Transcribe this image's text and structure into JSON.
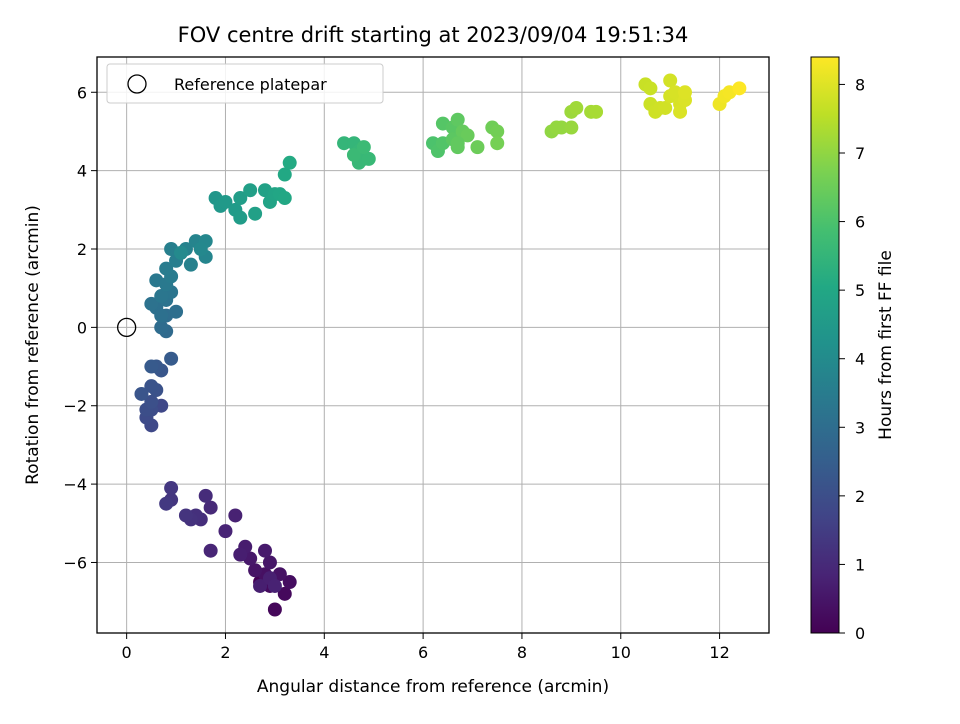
{
  "chart_data": {
    "type": "scatter",
    "title": "FOV centre drift starting at 2023/09/04 19:51:34",
    "xlabel": "Angular distance from reference (arcmin)",
    "ylabel": "Rotation from reference (arcmin)",
    "xlim": [
      -0.6,
      13.0
    ],
    "ylim": [
      -7.8,
      6.9
    ],
    "xticks": [
      0,
      2,
      4,
      6,
      8,
      10,
      12
    ],
    "yticks": [
      -6,
      -4,
      -2,
      0,
      2,
      4,
      6
    ],
    "grid": true,
    "legend": {
      "placement": "top-left",
      "entries": [
        {
          "label": "Reference platepar",
          "marker": "open-circle",
          "x": 0,
          "y": 0
        }
      ]
    },
    "colorbar": {
      "label": "Hours from first FF file",
      "colormap": "viridis",
      "range": [
        0,
        8.4
      ],
      "ticks": [
        0,
        1,
        2,
        3,
        4,
        5,
        6,
        7,
        8
      ]
    },
    "points": [
      {
        "x": 2.7,
        "y": -6.5,
        "h": 0.0
      },
      {
        "x": 3.0,
        "y": -7.2,
        "h": 0.15
      },
      {
        "x": 3.2,
        "y": -6.8,
        "h": 0.2
      },
      {
        "x": 2.9,
        "y": -6.6,
        "h": 0.25
      },
      {
        "x": 3.3,
        "y": -6.5,
        "h": 0.3
      },
      {
        "x": 2.8,
        "y": -6.3,
        "h": 0.35
      },
      {
        "x": 3.1,
        "y": -6.3,
        "h": 0.4
      },
      {
        "x": 2.6,
        "y": -6.2,
        "h": 0.45
      },
      {
        "x": 2.9,
        "y": -6.0,
        "h": 0.5
      },
      {
        "x": 2.5,
        "y": -5.9,
        "h": 0.55
      },
      {
        "x": 2.8,
        "y": -5.7,
        "h": 0.6
      },
      {
        "x": 2.4,
        "y": -5.6,
        "h": 0.65
      },
      {
        "x": 2.3,
        "y": -5.8,
        "h": 0.7
      },
      {
        "x": 2.7,
        "y": -6.6,
        "h": 0.72
      },
      {
        "x": 2.9,
        "y": -6.4,
        "h": 0.75
      },
      {
        "x": 3.0,
        "y": -6.6,
        "h": 0.78
      },
      {
        "x": 2.2,
        "y": -4.8,
        "h": 0.8
      },
      {
        "x": 2.0,
        "y": -5.2,
        "h": 0.85
      },
      {
        "x": 1.7,
        "y": -5.7,
        "h": 0.9
      },
      {
        "x": 1.7,
        "y": -4.6,
        "h": 1.0
      },
      {
        "x": 1.6,
        "y": -4.3,
        "h": 1.05
      },
      {
        "x": 1.5,
        "y": -4.9,
        "h": 1.1
      },
      {
        "x": 1.4,
        "y": -4.8,
        "h": 1.15
      },
      {
        "x": 1.3,
        "y": -4.9,
        "h": 1.2
      },
      {
        "x": 1.2,
        "y": -4.8,
        "h": 1.25
      },
      {
        "x": 0.9,
        "y": -4.4,
        "h": 1.3
      },
      {
        "x": 0.9,
        "y": -4.1,
        "h": 1.35
      },
      {
        "x": 0.8,
        "y": -4.5,
        "h": 1.4
      },
      {
        "x": 0.7,
        "y": -2.0,
        "h": 1.8
      },
      {
        "x": 0.5,
        "y": -2.5,
        "h": 1.85
      },
      {
        "x": 0.4,
        "y": -2.3,
        "h": 1.9
      },
      {
        "x": 0.5,
        "y": -2.1,
        "h": 1.95
      },
      {
        "x": 0.4,
        "y": -2.1,
        "h": 2.0
      },
      {
        "x": 0.5,
        "y": -1.9,
        "h": 2.05
      },
      {
        "x": 0.6,
        "y": -1.6,
        "h": 2.1
      },
      {
        "x": 0.5,
        "y": -1.5,
        "h": 2.15
      },
      {
        "x": 0.3,
        "y": -1.7,
        "h": 2.2
      },
      {
        "x": 0.7,
        "y": -1.1,
        "h": 2.25
      },
      {
        "x": 0.6,
        "y": -1.0,
        "h": 2.3
      },
      {
        "x": 0.5,
        "y": -1.0,
        "h": 2.35
      },
      {
        "x": 0.9,
        "y": -0.8,
        "h": 2.4
      },
      {
        "x": 0.8,
        "y": -0.1,
        "h": 2.9
      },
      {
        "x": 0.7,
        "y": 0.0,
        "h": 2.95
      },
      {
        "x": 0.8,
        "y": 0.3,
        "h": 3.0
      },
      {
        "x": 1.0,
        "y": 0.4,
        "h": 3.05
      },
      {
        "x": 0.6,
        "y": 0.5,
        "h": 3.1
      },
      {
        "x": 0.7,
        "y": 0.3,
        "h": 3.1
      },
      {
        "x": 0.5,
        "y": 0.6,
        "h": 3.15
      },
      {
        "x": 0.8,
        "y": 0.7,
        "h": 3.2
      },
      {
        "x": 0.9,
        "y": 0.9,
        "h": 3.25
      },
      {
        "x": 0.7,
        "y": 0.8,
        "h": 3.3
      },
      {
        "x": 0.6,
        "y": 1.2,
        "h": 3.35
      },
      {
        "x": 0.8,
        "y": 1.1,
        "h": 3.4
      },
      {
        "x": 0.9,
        "y": 1.3,
        "h": 3.45
      },
      {
        "x": 0.8,
        "y": 1.5,
        "h": 3.5
      },
      {
        "x": 1.0,
        "y": 1.7,
        "h": 3.55
      },
      {
        "x": 0.9,
        "y": 2.0,
        "h": 3.6
      },
      {
        "x": 1.3,
        "y": 1.6,
        "h": 3.65
      },
      {
        "x": 1.2,
        "y": 2.0,
        "h": 3.7
      },
      {
        "x": 1.4,
        "y": 2.2,
        "h": 3.75
      },
      {
        "x": 1.6,
        "y": 1.8,
        "h": 3.8
      },
      {
        "x": 1.6,
        "y": 2.2,
        "h": 3.85
      },
      {
        "x": 1.5,
        "y": 2.0,
        "h": 3.9
      },
      {
        "x": 1.1,
        "y": 1.9,
        "h": 3.95
      },
      {
        "x": 1.8,
        "y": 3.3,
        "h": 4.4
      },
      {
        "x": 1.9,
        "y": 3.1,
        "h": 4.45
      },
      {
        "x": 2.0,
        "y": 3.2,
        "h": 4.5
      },
      {
        "x": 2.2,
        "y": 3.0,
        "h": 4.55
      },
      {
        "x": 2.3,
        "y": 2.8,
        "h": 4.6
      },
      {
        "x": 2.3,
        "y": 3.3,
        "h": 4.65
      },
      {
        "x": 2.5,
        "y": 3.5,
        "h": 4.7
      },
      {
        "x": 2.6,
        "y": 2.9,
        "h": 4.75
      },
      {
        "x": 2.8,
        "y": 3.5,
        "h": 4.8
      },
      {
        "x": 2.9,
        "y": 3.2,
        "h": 4.85
      },
      {
        "x": 3.0,
        "y": 3.4,
        "h": 4.9
      },
      {
        "x": 3.1,
        "y": 3.4,
        "h": 4.95
      },
      {
        "x": 3.2,
        "y": 3.3,
        "h": 5.0
      },
      {
        "x": 3.2,
        "y": 3.9,
        "h": 5.05
      },
      {
        "x": 3.3,
        "y": 4.2,
        "h": 5.1
      },
      {
        "x": 4.4,
        "y": 4.7,
        "h": 5.5
      },
      {
        "x": 4.6,
        "y": 4.7,
        "h": 5.52
      },
      {
        "x": 4.7,
        "y": 4.5,
        "h": 5.55
      },
      {
        "x": 4.8,
        "y": 4.3,
        "h": 5.58
      },
      {
        "x": 4.7,
        "y": 4.2,
        "h": 5.6
      },
      {
        "x": 4.9,
        "y": 4.3,
        "h": 5.62
      },
      {
        "x": 4.6,
        "y": 4.4,
        "h": 5.65
      },
      {
        "x": 4.8,
        "y": 4.6,
        "h": 5.68
      },
      {
        "x": 6.2,
        "y": 4.7,
        "h": 6.0
      },
      {
        "x": 6.3,
        "y": 4.5,
        "h": 6.05
      },
      {
        "x": 6.4,
        "y": 4.7,
        "h": 6.1
      },
      {
        "x": 6.4,
        "y": 5.2,
        "h": 6.15
      },
      {
        "x": 6.6,
        "y": 5.1,
        "h": 6.2
      },
      {
        "x": 6.6,
        "y": 4.8,
        "h": 6.25
      },
      {
        "x": 6.7,
        "y": 5.3,
        "h": 6.3
      },
      {
        "x": 6.7,
        "y": 4.6,
        "h": 6.35
      },
      {
        "x": 6.8,
        "y": 5.0,
        "h": 6.4
      },
      {
        "x": 6.9,
        "y": 4.9,
        "h": 6.45
      },
      {
        "x": 7.1,
        "y": 4.6,
        "h": 6.5
      },
      {
        "x": 7.4,
        "y": 5.1,
        "h": 6.55
      },
      {
        "x": 7.5,
        "y": 5.0,
        "h": 6.6
      },
      {
        "x": 7.5,
        "y": 4.7,
        "h": 6.65
      },
      {
        "x": 6.7,
        "y": 4.7,
        "h": 6.35
      },
      {
        "x": 8.6,
        "y": 5.0,
        "h": 7.0
      },
      {
        "x": 8.8,
        "y": 5.1,
        "h": 7.05
      },
      {
        "x": 9.0,
        "y": 5.1,
        "h": 7.1
      },
      {
        "x": 9.0,
        "y": 5.5,
        "h": 7.15
      },
      {
        "x": 9.1,
        "y": 5.6,
        "h": 7.2
      },
      {
        "x": 9.4,
        "y": 5.5,
        "h": 7.25
      },
      {
        "x": 9.5,
        "y": 5.5,
        "h": 7.3
      },
      {
        "x": 8.7,
        "y": 5.1,
        "h": 7.05
      },
      {
        "x": 10.5,
        "y": 6.2,
        "h": 7.7
      },
      {
        "x": 10.6,
        "y": 6.1,
        "h": 7.72
      },
      {
        "x": 10.6,
        "y": 5.7,
        "h": 7.75
      },
      {
        "x": 10.7,
        "y": 5.5,
        "h": 7.78
      },
      {
        "x": 10.8,
        "y": 5.6,
        "h": 7.8
      },
      {
        "x": 10.9,
        "y": 5.6,
        "h": 7.82
      },
      {
        "x": 11.0,
        "y": 6.3,
        "h": 7.85
      },
      {
        "x": 11.0,
        "y": 5.9,
        "h": 7.88
      },
      {
        "x": 11.1,
        "y": 6.0,
        "h": 7.9
      },
      {
        "x": 11.2,
        "y": 5.7,
        "h": 7.92
      },
      {
        "x": 11.2,
        "y": 5.5,
        "h": 7.94
      },
      {
        "x": 11.3,
        "y": 5.8,
        "h": 7.96
      },
      {
        "x": 11.3,
        "y": 6.0,
        "h": 7.98
      },
      {
        "x": 12.0,
        "y": 5.7,
        "h": 8.2
      },
      {
        "x": 12.1,
        "y": 5.9,
        "h": 8.25
      },
      {
        "x": 12.2,
        "y": 6.0,
        "h": 8.3
      },
      {
        "x": 12.4,
        "y": 6.1,
        "h": 8.4
      }
    ]
  }
}
